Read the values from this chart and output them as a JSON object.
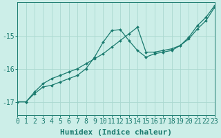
{
  "xlabel": "Humidex (Indice chaleur)",
  "bg_color": "#cceee8",
  "line_color": "#1a7a6e",
  "grid_color": "#aad8d0",
  "x_values": [
    0,
    1,
    2,
    3,
    4,
    5,
    6,
    7,
    8,
    9,
    10,
    11,
    12,
    13,
    14,
    15,
    16,
    17,
    18,
    19,
    20,
    21,
    22,
    23
  ],
  "line1_y": [
    -17.0,
    -17.0,
    -16.75,
    -16.55,
    -16.5,
    -16.4,
    -16.3,
    -16.2,
    -16.0,
    -15.65,
    -15.2,
    -14.85,
    -14.82,
    -15.15,
    -15.45,
    -15.65,
    -15.55,
    -15.5,
    -15.45,
    -15.3,
    -15.1,
    -14.8,
    -14.55,
    -14.15
  ],
  "line2_y": [
    -17.0,
    -17.0,
    -16.7,
    -16.45,
    -16.3,
    -16.2,
    -16.1,
    -16.0,
    -15.85,
    -15.7,
    -15.55,
    -15.35,
    -15.15,
    -14.95,
    -14.75,
    -15.5,
    -15.5,
    -15.45,
    -15.4,
    -15.3,
    -15.05,
    -14.7,
    -14.45,
    -14.1
  ],
  "ylim": [
    -17.4,
    -14.0
  ],
  "xlim": [
    0,
    23
  ],
  "yticks": [
    -17,
    -16,
    -15
  ],
  "xticks": [
    0,
    1,
    2,
    3,
    4,
    5,
    6,
    7,
    8,
    9,
    10,
    11,
    12,
    13,
    14,
    15,
    16,
    17,
    18,
    19,
    20,
    21,
    22,
    23
  ],
  "xlabel_fontsize": 8,
  "tick_fontsize": 7
}
